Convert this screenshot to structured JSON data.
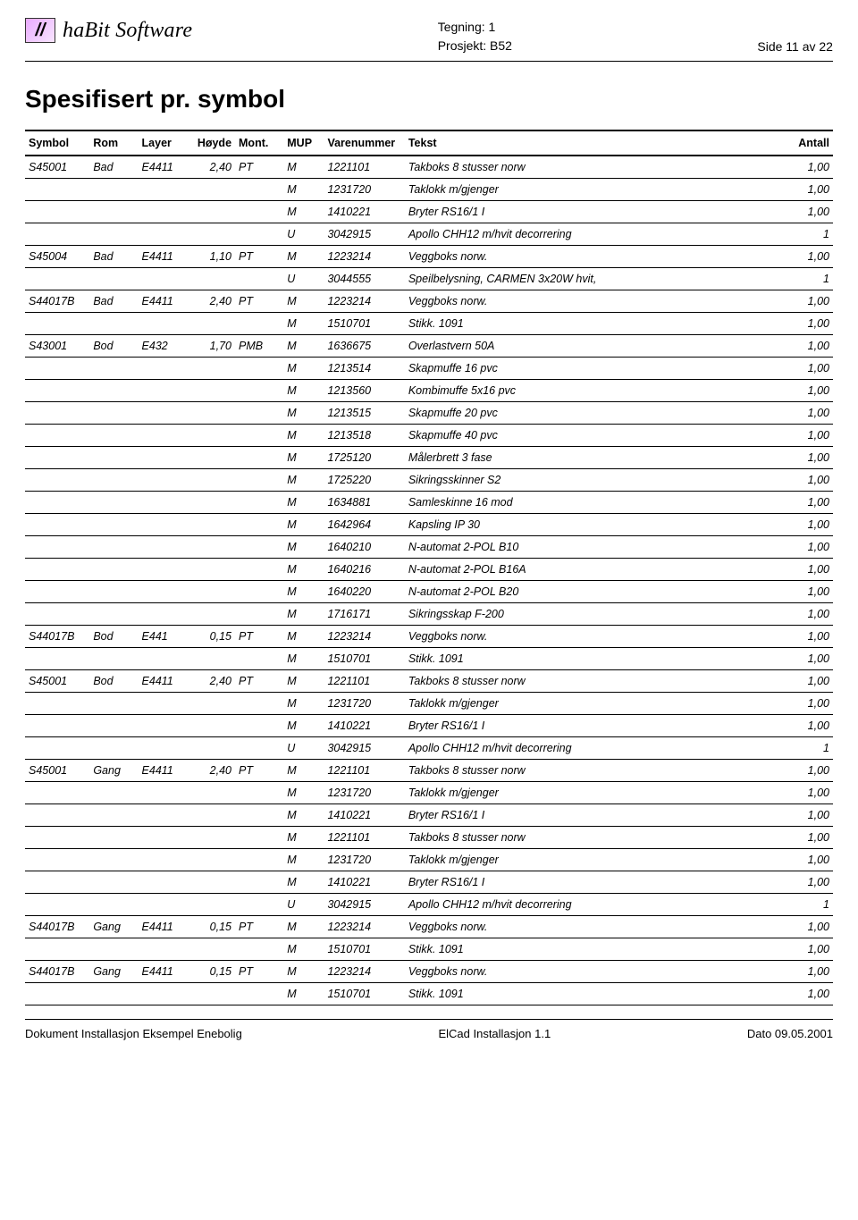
{
  "header": {
    "brand": "haBit Software",
    "tegning_label": "Tegning: 1",
    "prosjekt_label": "Prosjekt: B52",
    "side_label": "Side 11 av 22"
  },
  "title": "Spesifisert pr. symbol",
  "columns": {
    "symbol": "Symbol",
    "rom": "Rom",
    "layer": "Layer",
    "hoyde": "Høyde",
    "mont": "Mont.",
    "mup": "MUP",
    "varenummer": "Varenummer",
    "tekst": "Tekst",
    "antall": "Antall"
  },
  "rows": [
    {
      "symbol": "S45001",
      "rom": "Bad",
      "layer": "E4411",
      "hoyde": "2,40",
      "mont": "PT",
      "mup": "M",
      "vn": "1221101",
      "tekst": "Takboks 8 stusser norw",
      "antall": "1,00"
    },
    {
      "symbol": "",
      "rom": "",
      "layer": "",
      "hoyde": "",
      "mont": "",
      "mup": "M",
      "vn": "1231720",
      "tekst": "Taklokk m/gjenger",
      "antall": "1,00"
    },
    {
      "symbol": "",
      "rom": "",
      "layer": "",
      "hoyde": "",
      "mont": "",
      "mup": "M",
      "vn": "1410221",
      "tekst": "Bryter RS16/1 I",
      "antall": "1,00"
    },
    {
      "symbol": "",
      "rom": "",
      "layer": "",
      "hoyde": "",
      "mont": "",
      "mup": "U",
      "vn": "3042915",
      "tekst": "Apollo CHH12 m/hvit decorrering",
      "antall": "1"
    },
    {
      "symbol": "S45004",
      "rom": "Bad",
      "layer": "E4411",
      "hoyde": "1,10",
      "mont": "PT",
      "mup": "M",
      "vn": "1223214",
      "tekst": "Veggboks norw.",
      "antall": "1,00"
    },
    {
      "symbol": "",
      "rom": "",
      "layer": "",
      "hoyde": "",
      "mont": "",
      "mup": "U",
      "vn": "3044555",
      "tekst": "Speilbelysning, CARMEN 3x20W hvit,",
      "antall": "1"
    },
    {
      "symbol": "S44017B",
      "rom": "Bad",
      "layer": "E4411",
      "hoyde": "2,40",
      "mont": "PT",
      "mup": "M",
      "vn": "1223214",
      "tekst": "Veggboks norw.",
      "antall": "1,00"
    },
    {
      "symbol": "",
      "rom": "",
      "layer": "",
      "hoyde": "",
      "mont": "",
      "mup": "M",
      "vn": "1510701",
      "tekst": "Stikk. 1091",
      "antall": "1,00"
    },
    {
      "symbol": "S43001",
      "rom": "Bod",
      "layer": "E432",
      "hoyde": "1,70",
      "mont": "PMB",
      "mup": "M",
      "vn": "1636675",
      "tekst": "Overlastvern 50A",
      "antall": "1,00"
    },
    {
      "symbol": "",
      "rom": "",
      "layer": "",
      "hoyde": "",
      "mont": "",
      "mup": "M",
      "vn": "1213514",
      "tekst": "Skapmuffe 16 pvc",
      "antall": "1,00"
    },
    {
      "symbol": "",
      "rom": "",
      "layer": "",
      "hoyde": "",
      "mont": "",
      "mup": "M",
      "vn": "1213560",
      "tekst": "Kombimuffe 5x16 pvc",
      "antall": "1,00"
    },
    {
      "symbol": "",
      "rom": "",
      "layer": "",
      "hoyde": "",
      "mont": "",
      "mup": "M",
      "vn": "1213515",
      "tekst": "Skapmuffe 20 pvc",
      "antall": "1,00"
    },
    {
      "symbol": "",
      "rom": "",
      "layer": "",
      "hoyde": "",
      "mont": "",
      "mup": "M",
      "vn": "1213518",
      "tekst": "Skapmuffe 40 pvc",
      "antall": "1,00"
    },
    {
      "symbol": "",
      "rom": "",
      "layer": "",
      "hoyde": "",
      "mont": "",
      "mup": "M",
      "vn": "1725120",
      "tekst": "Målerbrett 3 fase",
      "antall": "1,00"
    },
    {
      "symbol": "",
      "rom": "",
      "layer": "",
      "hoyde": "",
      "mont": "",
      "mup": "M",
      "vn": "1725220",
      "tekst": "Sikringsskinner S2",
      "antall": "1,00"
    },
    {
      "symbol": "",
      "rom": "",
      "layer": "",
      "hoyde": "",
      "mont": "",
      "mup": "M",
      "vn": "1634881",
      "tekst": "Samleskinne 16 mod",
      "antall": "1,00"
    },
    {
      "symbol": "",
      "rom": "",
      "layer": "",
      "hoyde": "",
      "mont": "",
      "mup": "M",
      "vn": "1642964",
      "tekst": "Kapsling IP 30",
      "antall": "1,00"
    },
    {
      "symbol": "",
      "rom": "",
      "layer": "",
      "hoyde": "",
      "mont": "",
      "mup": "M",
      "vn": "1640210",
      "tekst": "N-automat 2-POL B10",
      "antall": "1,00"
    },
    {
      "symbol": "",
      "rom": "",
      "layer": "",
      "hoyde": "",
      "mont": "",
      "mup": "M",
      "vn": "1640216",
      "tekst": "N-automat 2-POL B16A",
      "antall": "1,00"
    },
    {
      "symbol": "",
      "rom": "",
      "layer": "",
      "hoyde": "",
      "mont": "",
      "mup": "M",
      "vn": "1640220",
      "tekst": "N-automat 2-POL B20",
      "antall": "1,00"
    },
    {
      "symbol": "",
      "rom": "",
      "layer": "",
      "hoyde": "",
      "mont": "",
      "mup": "M",
      "vn": "1716171",
      "tekst": "Sikringsskap F-200",
      "antall": "1,00"
    },
    {
      "symbol": "S44017B",
      "rom": "Bod",
      "layer": "E441",
      "hoyde": "0,15",
      "mont": "PT",
      "mup": "M",
      "vn": "1223214",
      "tekst": "Veggboks norw.",
      "antall": "1,00"
    },
    {
      "symbol": "",
      "rom": "",
      "layer": "",
      "hoyde": "",
      "mont": "",
      "mup": "M",
      "vn": "1510701",
      "tekst": "Stikk. 1091",
      "antall": "1,00"
    },
    {
      "symbol": "S45001",
      "rom": "Bod",
      "layer": "E4411",
      "hoyde": "2,40",
      "mont": "PT",
      "mup": "M",
      "vn": "1221101",
      "tekst": "Takboks 8 stusser norw",
      "antall": "1,00"
    },
    {
      "symbol": "",
      "rom": "",
      "layer": "",
      "hoyde": "",
      "mont": "",
      "mup": "M",
      "vn": "1231720",
      "tekst": "Taklokk m/gjenger",
      "antall": "1,00"
    },
    {
      "symbol": "",
      "rom": "",
      "layer": "",
      "hoyde": "",
      "mont": "",
      "mup": "M",
      "vn": "1410221",
      "tekst": "Bryter RS16/1 I",
      "antall": "1,00"
    },
    {
      "symbol": "",
      "rom": "",
      "layer": "",
      "hoyde": "",
      "mont": "",
      "mup": "U",
      "vn": "3042915",
      "tekst": "Apollo CHH12 m/hvit decorrering",
      "antall": "1"
    },
    {
      "symbol": "S45001",
      "rom": "Gang",
      "layer": "E4411",
      "hoyde": "2,40",
      "mont": "PT",
      "mup": "M",
      "vn": "1221101",
      "tekst": "Takboks 8 stusser norw",
      "antall": "1,00"
    },
    {
      "symbol": "",
      "rom": "",
      "layer": "",
      "hoyde": "",
      "mont": "",
      "mup": "M",
      "vn": "1231720",
      "tekst": "Taklokk m/gjenger",
      "antall": "1,00"
    },
    {
      "symbol": "",
      "rom": "",
      "layer": "",
      "hoyde": "",
      "mont": "",
      "mup": "M",
      "vn": "1410221",
      "tekst": "Bryter RS16/1 I",
      "antall": "1,00"
    },
    {
      "symbol": "",
      "rom": "",
      "layer": "",
      "hoyde": "",
      "mont": "",
      "mup": "M",
      "vn": "1221101",
      "tekst": "Takboks 8 stusser norw",
      "antall": "1,00"
    },
    {
      "symbol": "",
      "rom": "",
      "layer": "",
      "hoyde": "",
      "mont": "",
      "mup": "M",
      "vn": "1231720",
      "tekst": "Taklokk m/gjenger",
      "antall": "1,00"
    },
    {
      "symbol": "",
      "rom": "",
      "layer": "",
      "hoyde": "",
      "mont": "",
      "mup": "M",
      "vn": "1410221",
      "tekst": "Bryter RS16/1 I",
      "antall": "1,00"
    },
    {
      "symbol": "",
      "rom": "",
      "layer": "",
      "hoyde": "",
      "mont": "",
      "mup": "U",
      "vn": "3042915",
      "tekst": "Apollo CHH12 m/hvit decorrering",
      "antall": "1"
    },
    {
      "symbol": "S44017B",
      "rom": "Gang",
      "layer": "E4411",
      "hoyde": "0,15",
      "mont": "PT",
      "mup": "M",
      "vn": "1223214",
      "tekst": "Veggboks norw.",
      "antall": "1,00"
    },
    {
      "symbol": "",
      "rom": "",
      "layer": "",
      "hoyde": "",
      "mont": "",
      "mup": "M",
      "vn": "1510701",
      "tekst": "Stikk. 1091",
      "antall": "1,00"
    },
    {
      "symbol": "S44017B",
      "rom": "Gang",
      "layer": "E4411",
      "hoyde": "0,15",
      "mont": "PT",
      "mup": "M",
      "vn": "1223214",
      "tekst": "Veggboks norw.",
      "antall": "1,00"
    },
    {
      "symbol": "",
      "rom": "",
      "layer": "",
      "hoyde": "",
      "mont": "",
      "mup": "M",
      "vn": "1510701",
      "tekst": "Stikk. 1091",
      "antall": "1,00"
    }
  ],
  "footer": {
    "left": "Dokument Installasjon Eksempel Enebolig",
    "center": "ElCad Installasjon 1.1",
    "right": "Dato 09.05.2001"
  }
}
